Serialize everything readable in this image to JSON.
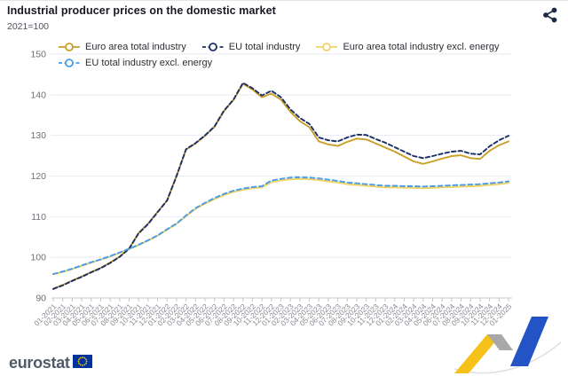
{
  "header": {
    "title": "Industrial producer prices on the domestic market",
    "subtitle": "2021=100"
  },
  "legend": {
    "items": [
      {
        "label": "Euro area total industry",
        "color": "#c8a028",
        "dash": ""
      },
      {
        "label": "EU total industry",
        "color": "#1b2f66",
        "dash": "4 2.5"
      },
      {
        "label": "Euro area total industry excl. energy",
        "color": "#f0d264",
        "dash": ""
      },
      {
        "label": "EU total industry excl. energy",
        "color": "#4a9ce8",
        "dash": "4 2.5"
      }
    ]
  },
  "chart_data": {
    "type": "line",
    "title": "Industrial producer prices on the domestic market",
    "subtitle": "2021=100",
    "xlabel": "",
    "ylabel": "",
    "ylim": [
      90,
      150
    ],
    "yticks": [
      90,
      100,
      110,
      120,
      130,
      140,
      150
    ],
    "grid": true,
    "legend_position": "top",
    "x": [
      "01-2021",
      "02-2021",
      "03-2021",
      "04-2021",
      "05-2021",
      "06-2021",
      "07-2021",
      "08-2021",
      "09-2021",
      "10-2021",
      "11-2021",
      "12-2021",
      "01-2022",
      "02-2022",
      "03-2022",
      "04-2022",
      "05-2022",
      "06-2022",
      "07-2022",
      "08-2022",
      "09-2022",
      "10-2022",
      "11-2022",
      "12-2022",
      "01-2023",
      "02-2023",
      "03-2023",
      "04-2023",
      "05-2023",
      "06-2023",
      "07-2023",
      "08-2023",
      "09-2023",
      "10-2023",
      "11-2023",
      "12-2023",
      "01-2024",
      "02-2024",
      "03-2024",
      "04-2024",
      "05-2024",
      "06-2024",
      "07-2024",
      "08-2024",
      "09-2024",
      "10-2024",
      "11-2024",
      "12-2024",
      "01-2025"
    ],
    "series": [
      {
        "name": "Euro area total industry",
        "color": "#c8a028",
        "dash": "",
        "values": [
          92.3,
          93.2,
          94.3,
          95.3,
          96.4,
          97.4,
          98.7,
          100.2,
          102.2,
          106.0,
          108.3,
          111.2,
          114.0,
          120.0,
          126.5,
          128.0,
          129.9,
          132.1,
          136.0,
          138.7,
          142.7,
          141.3,
          139.4,
          140.3,
          138.8,
          135.8,
          133.5,
          132.0,
          128.5,
          127.8,
          127.4,
          128.4,
          129.2,
          129.0,
          128.0,
          127.0,
          126.0,
          124.8,
          123.6,
          123.0,
          123.6,
          124.3,
          124.9,
          125.1,
          124.4,
          124.2,
          126.2,
          127.6,
          128.5
        ]
      },
      {
        "name": "EU total industry",
        "color": "#1b2f66",
        "dash": "4.5 3",
        "values": [
          92.2,
          93.1,
          94.2,
          95.2,
          96.3,
          97.3,
          98.6,
          100.1,
          102.1,
          105.9,
          108.2,
          111.1,
          114.0,
          120.0,
          126.6,
          128.1,
          130.0,
          132.2,
          136.1,
          138.8,
          142.9,
          141.6,
          139.8,
          141.0,
          139.4,
          136.4,
          134.3,
          132.8,
          129.5,
          128.8,
          128.5,
          129.5,
          130.2,
          130.1,
          129.1,
          128.2,
          127.1,
          126.0,
          124.9,
          124.4,
          124.9,
          125.5,
          126.0,
          126.2,
          125.5,
          125.3,
          127.3,
          128.8,
          129.9
        ]
      },
      {
        "name": "Euro area total industry excl. energy",
        "color": "#f0d264",
        "dash": "",
        "values": [
          95.8,
          96.4,
          97.1,
          97.9,
          98.7,
          99.4,
          100.2,
          101.1,
          102.0,
          103.0,
          104.1,
          105.3,
          106.8,
          108.2,
          110.1,
          111.9,
          113.2,
          114.3,
          115.3,
          116.1,
          116.6,
          117.0,
          117.2,
          118.5,
          118.9,
          119.2,
          119.3,
          119.2,
          119.0,
          118.7,
          118.4,
          118.0,
          117.8,
          117.6,
          117.4,
          117.2,
          117.2,
          117.1,
          117.1,
          117.0,
          117.1,
          117.2,
          117.3,
          117.4,
          117.5,
          117.6,
          117.8,
          118.0,
          118.3
        ]
      },
      {
        "name": "EU total industry excl. energy",
        "color": "#4a9ce8",
        "dash": "5 3.5",
        "values": [
          95.9,
          96.5,
          97.2,
          98.0,
          98.8,
          99.5,
          100.3,
          101.2,
          102.1,
          103.1,
          104.2,
          105.4,
          106.9,
          108.3,
          110.3,
          112.1,
          113.4,
          114.6,
          115.6,
          116.4,
          116.9,
          117.3,
          117.5,
          118.9,
          119.3,
          119.6,
          119.7,
          119.6,
          119.4,
          119.1,
          118.8,
          118.4,
          118.2,
          118.0,
          117.8,
          117.6,
          117.6,
          117.5,
          117.5,
          117.4,
          117.5,
          117.6,
          117.7,
          117.8,
          117.9,
          118.0,
          118.2,
          118.4,
          118.7
        ]
      }
    ]
  },
  "footer": {
    "brand": "eurostat"
  },
  "colors": {
    "icon_navy": "#1f2a44",
    "flag_blue": "#003399",
    "flag_yellow": "#ffcc00",
    "ribbon_yellow": "#f6c21a",
    "ribbon_gray": "#a8a8a8",
    "ribbon_blue": "#2353c4"
  }
}
